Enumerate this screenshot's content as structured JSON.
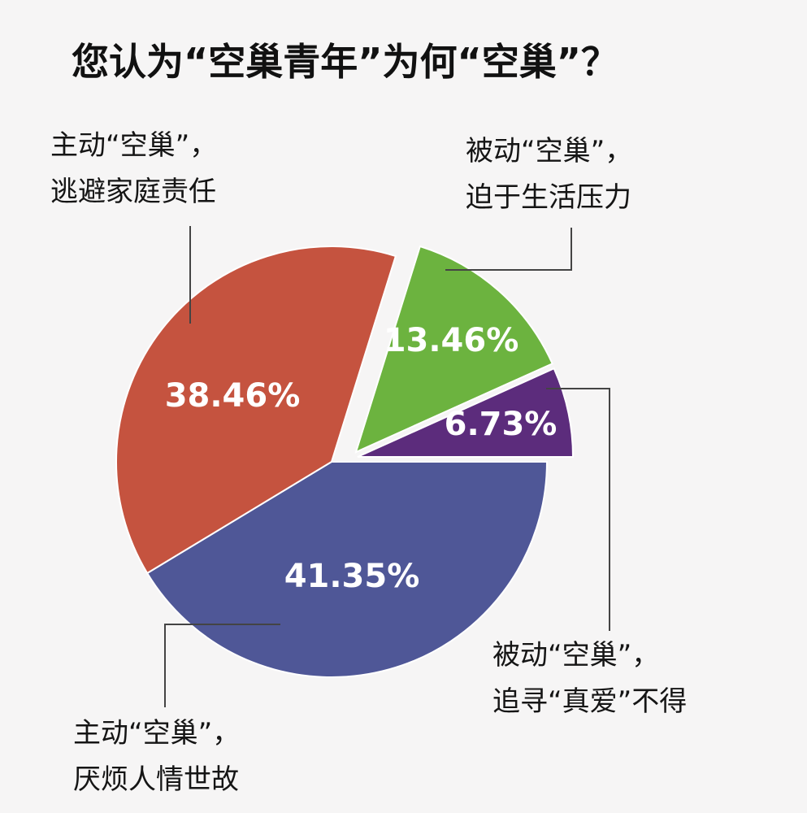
{
  "chart_data": {
    "type": "pie",
    "title": "您认为“空巢青年”为何“空巢”？",
    "slices": [
      {
        "label_line1": "主动“空巢”，",
        "label_line2": "厌烦人情世故",
        "value": 41.35,
        "value_label": "41.35%",
        "color": "#4f5797"
      },
      {
        "label_line1": "主动“空巢”，",
        "label_line2": "逃避家庭责任",
        "value": 38.46,
        "value_label": "38.46%",
        "color": "#c5533f"
      },
      {
        "label_line1": "被动“空巢”，",
        "label_line2": "迫于生活压力",
        "value": 13.46,
        "value_label": "13.46%",
        "color": "#6cb33f"
      },
      {
        "label_line1": "被动“空巢”，",
        "label_line2": "追寻“真爱”不得",
        "value": 6.73,
        "value_label": "6.73%",
        "color": "#5c2c7c"
      }
    ]
  }
}
